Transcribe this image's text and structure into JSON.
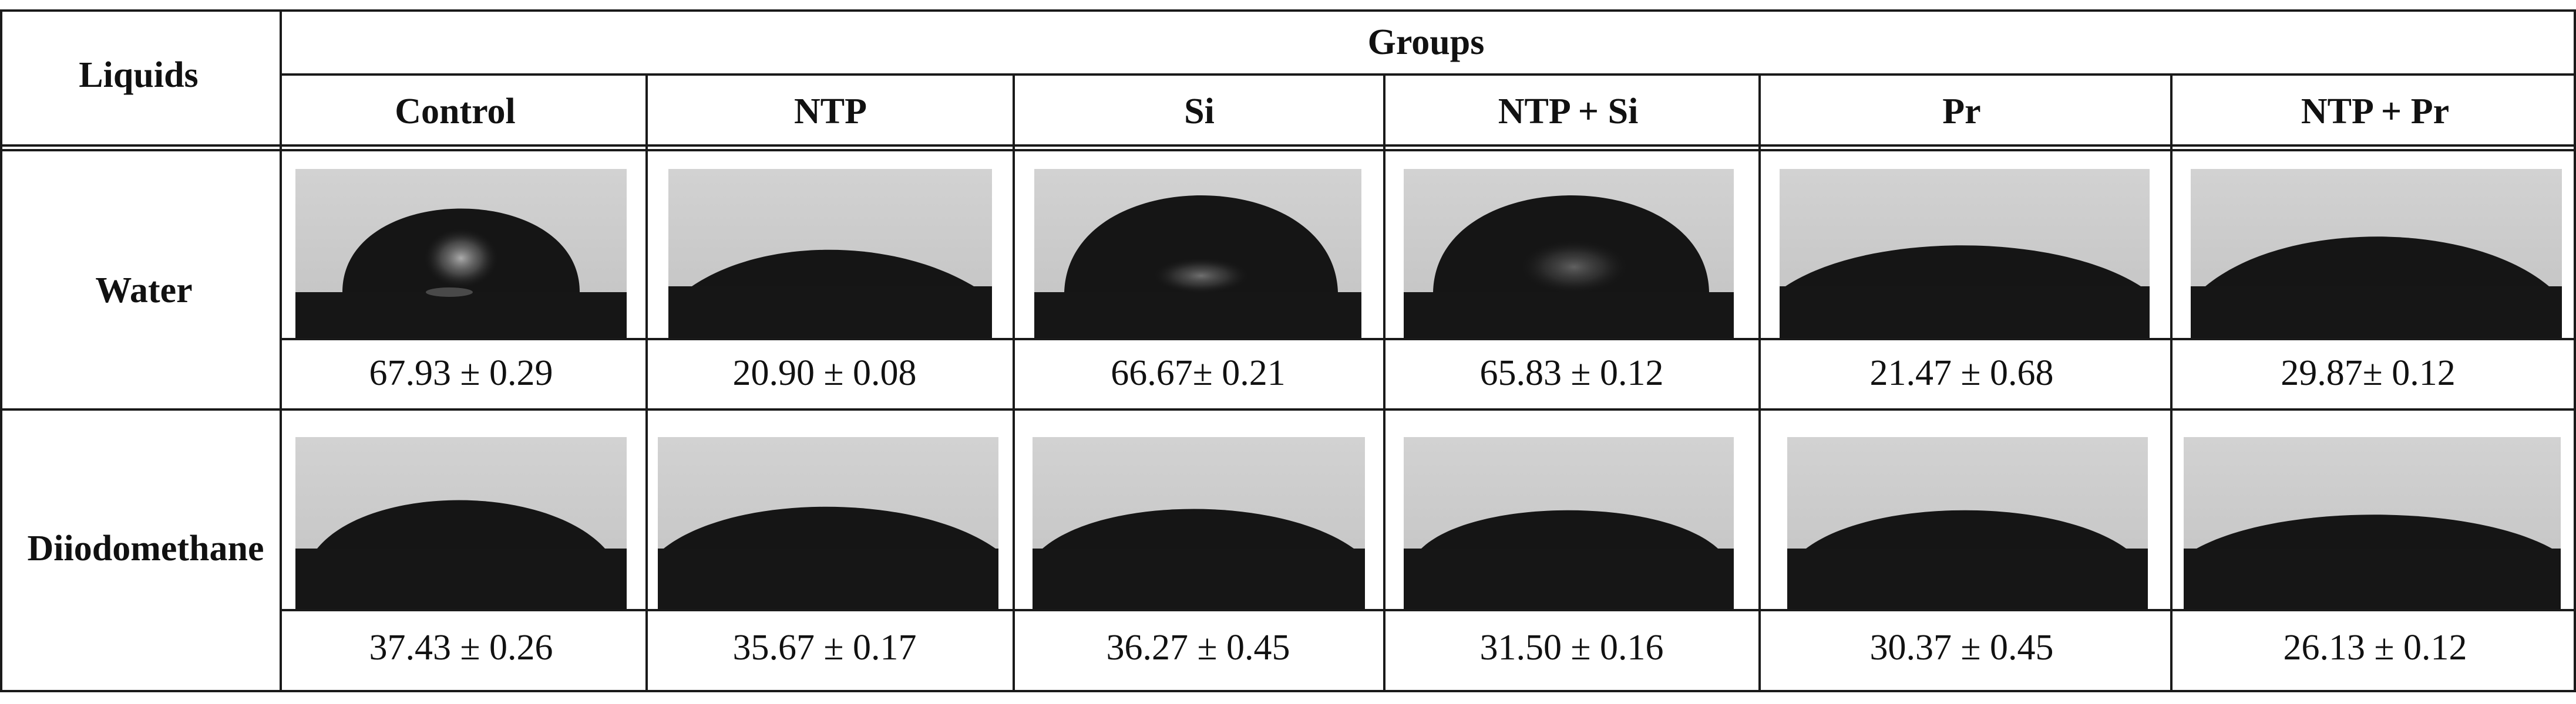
{
  "table": {
    "liquids_header": "Liquids",
    "groups_header": "Groups",
    "columns": [
      "Control",
      "NTP",
      "Si",
      "NTP + Si",
      "Pr",
      "NTP + Pr"
    ],
    "rows": [
      {
        "label": "Water",
        "values": [
          "67.93 ± 0.29",
          "20.90 ± 0.08",
          "66.67± 0.21",
          "65.83 ± 0.12",
          "21.47 ± 0.68",
          "29.87± 0.12"
        ]
      },
      {
        "label": "Diiodomethane",
        "values": [
          "37.43 ± 0.26",
          "35.67 ± 0.17",
          "36.27 ± 0.45",
          "31.50 ± 0.16",
          "30.37 ± 0.45",
          "26.13 ± 0.12"
        ]
      }
    ]
  },
  "colors": {
    "grid": "#1a1a1a",
    "image_background": "#c9c9c9",
    "droplet": "#151515"
  }
}
